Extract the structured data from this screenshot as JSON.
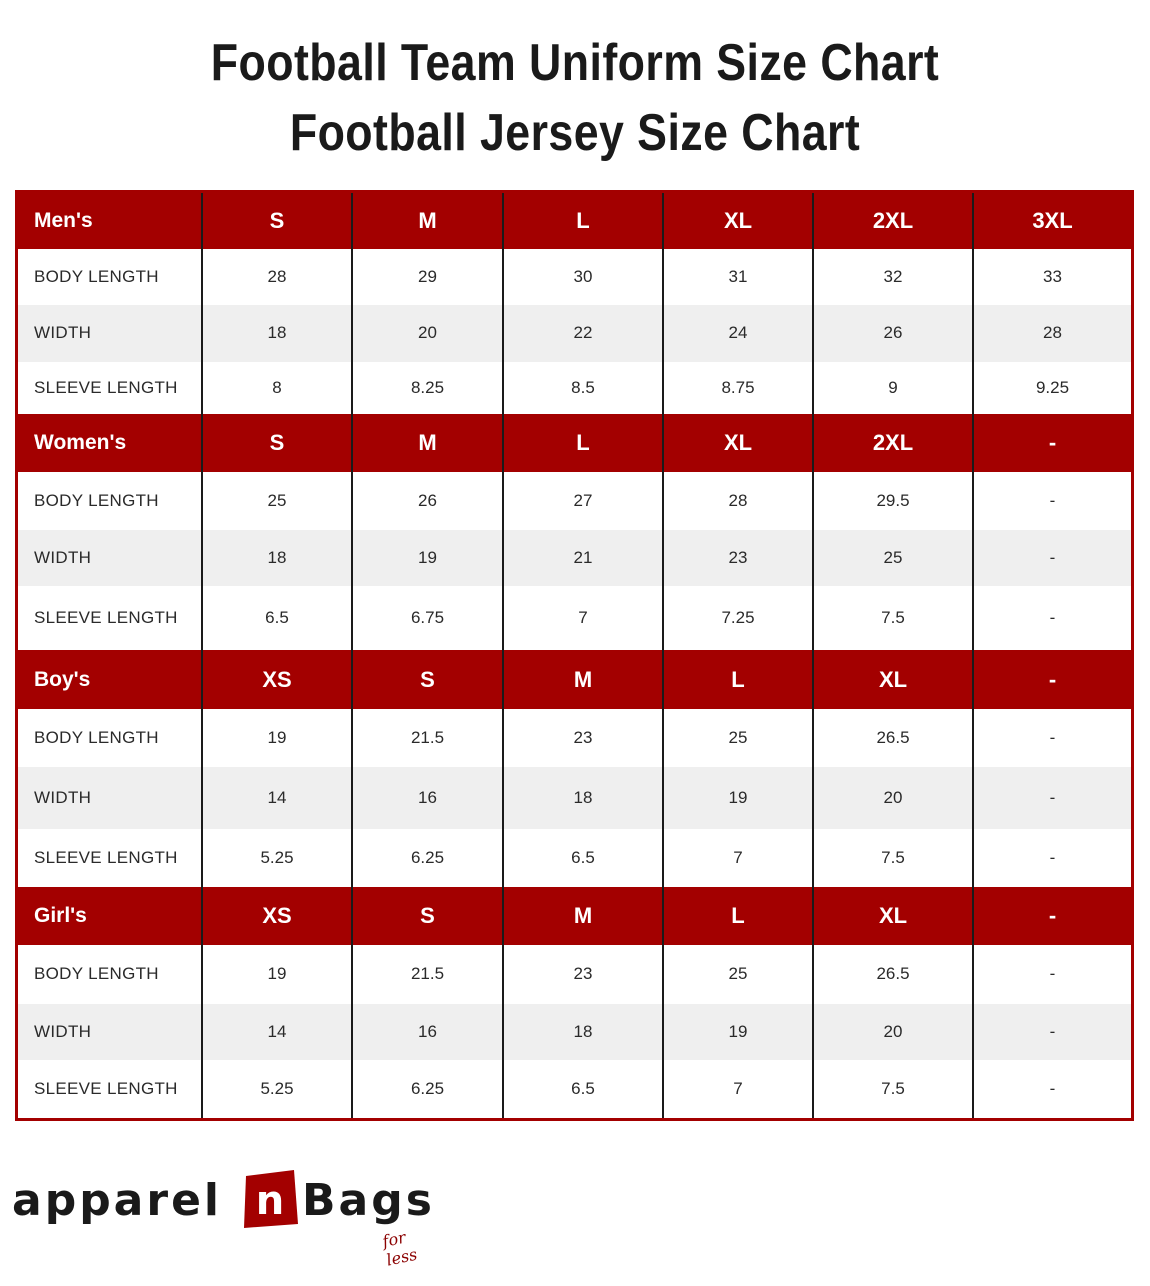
{
  "titles": {
    "line1": "Football Team Uniform Size Chart",
    "line2": "Football Jersey Size Chart"
  },
  "colors": {
    "header": "#a30000",
    "alt_row": "#efefef",
    "text": "#1a1a1a"
  },
  "sections": [
    {
      "label": "Men's",
      "sizes": [
        "S",
        "M",
        "L",
        "XL",
        "2XL",
        "3XL"
      ],
      "rows": [
        {
          "name": "BODY LENGTH",
          "values": [
            "28",
            "29",
            "30",
            "31",
            "32",
            "33"
          ]
        },
        {
          "name": "WIDTH",
          "values": [
            "18",
            "20",
            "22",
            "24",
            "26",
            "28"
          ]
        },
        {
          "name": "SLEEVE LENGTH",
          "values": [
            "8",
            "8.25",
            "8.5",
            "8.75",
            "9",
            "9.25"
          ]
        }
      ]
    },
    {
      "label": "Women's",
      "sizes": [
        "S",
        "M",
        "L",
        "XL",
        "2XL",
        "-"
      ],
      "rows": [
        {
          "name": "BODY LENGTH",
          "values": [
            "25",
            "26",
            "27",
            "28",
            "29.5",
            "-"
          ]
        },
        {
          "name": "WIDTH",
          "values": [
            "18",
            "19",
            "21",
            "23",
            "25",
            "-"
          ]
        },
        {
          "name": "SLEEVE LENGTH",
          "values": [
            "6.5",
            "6.75",
            "7",
            "7.25",
            "7.5",
            "-"
          ]
        }
      ]
    },
    {
      "label": "Boy's",
      "sizes": [
        "XS",
        "S",
        "M",
        "L",
        "XL",
        "-"
      ],
      "rows": [
        {
          "name": "BODY LENGTH",
          "values": [
            "19",
            "21.5",
            "23",
            "25",
            "26.5",
            "-"
          ]
        },
        {
          "name": "WIDTH",
          "values": [
            "14",
            "16",
            "18",
            "19",
            "20",
            "-"
          ]
        },
        {
          "name": "SLEEVE LENGTH",
          "values": [
            "5.25",
            "6.25",
            "6.5",
            "7",
            "7.5",
            "-"
          ]
        }
      ]
    },
    {
      "label": "Girl's",
      "sizes": [
        "XS",
        "S",
        "M",
        "L",
        "XL",
        "-"
      ],
      "rows": [
        {
          "name": "BODY LENGTH",
          "values": [
            "19",
            "21.5",
            "23",
            "25",
            "26.5",
            "-"
          ]
        },
        {
          "name": "WIDTH",
          "values": [
            "14",
            "16",
            "18",
            "19",
            "20",
            "-"
          ]
        },
        {
          "name": "SLEEVE LENGTH",
          "values": [
            "5.25",
            "6.25",
            "6.5",
            "7",
            "7.5",
            "-"
          ]
        }
      ]
    }
  ],
  "logo": {
    "left": "apparel",
    "mark": "n",
    "right": "Bags",
    "tagline": "for less"
  }
}
